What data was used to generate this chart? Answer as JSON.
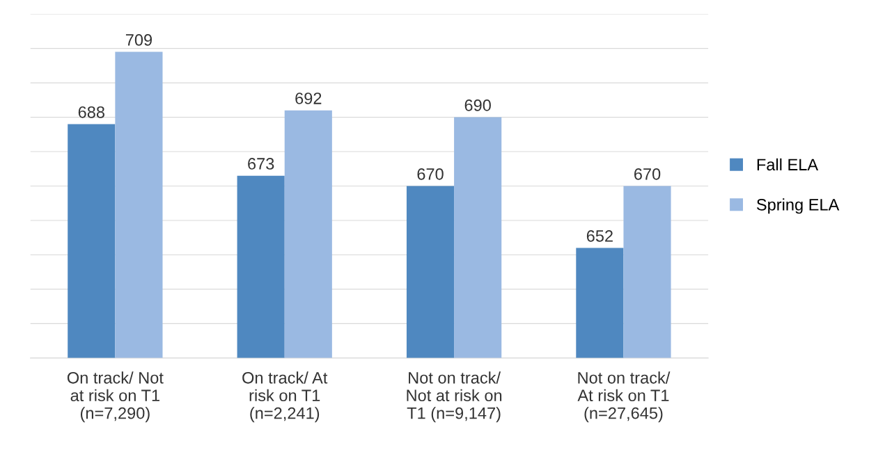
{
  "chart_data": {
    "type": "bar",
    "categories": [
      "On track/ Not\nat risk on T1\n(n=7,290)",
      "On track/ At\nrisk on T1\n(n=2,241)",
      "Not on track/\nNot at risk on\nT1 (n=9,147)",
      "Not on track/\nAt risk on T1\n(n=27,645)"
    ],
    "series": [
      {
        "name": "Fall ELA",
        "color": "#4f88c0",
        "values": [
          688,
          673,
          670,
          652
        ]
      },
      {
        "name": "Spring ELA",
        "color": "#9ab9e2",
        "values": [
          709,
          692,
          690,
          670
        ]
      }
    ],
    "ylim": [
      620,
      720
    ],
    "yticks": [
      {
        "value": 620,
        "label": null
      },
      {
        "value": 630,
        "label": null
      },
      {
        "value": 640,
        "label": null
      },
      {
        "value": 650,
        "label": null
      },
      {
        "value": 660,
        "label": null
      },
      {
        "value": 670,
        "label": null
      },
      {
        "value": 680,
        "label": null
      },
      {
        "value": 690,
        "label": null
      },
      {
        "value": 700,
        "label": null
      },
      {
        "value": 710,
        "label": null
      },
      {
        "value": 720,
        "label": null
      }
    ],
    "tick_labels": "x",
    "grid": "y",
    "data_labels": true,
    "legend": "right"
  }
}
